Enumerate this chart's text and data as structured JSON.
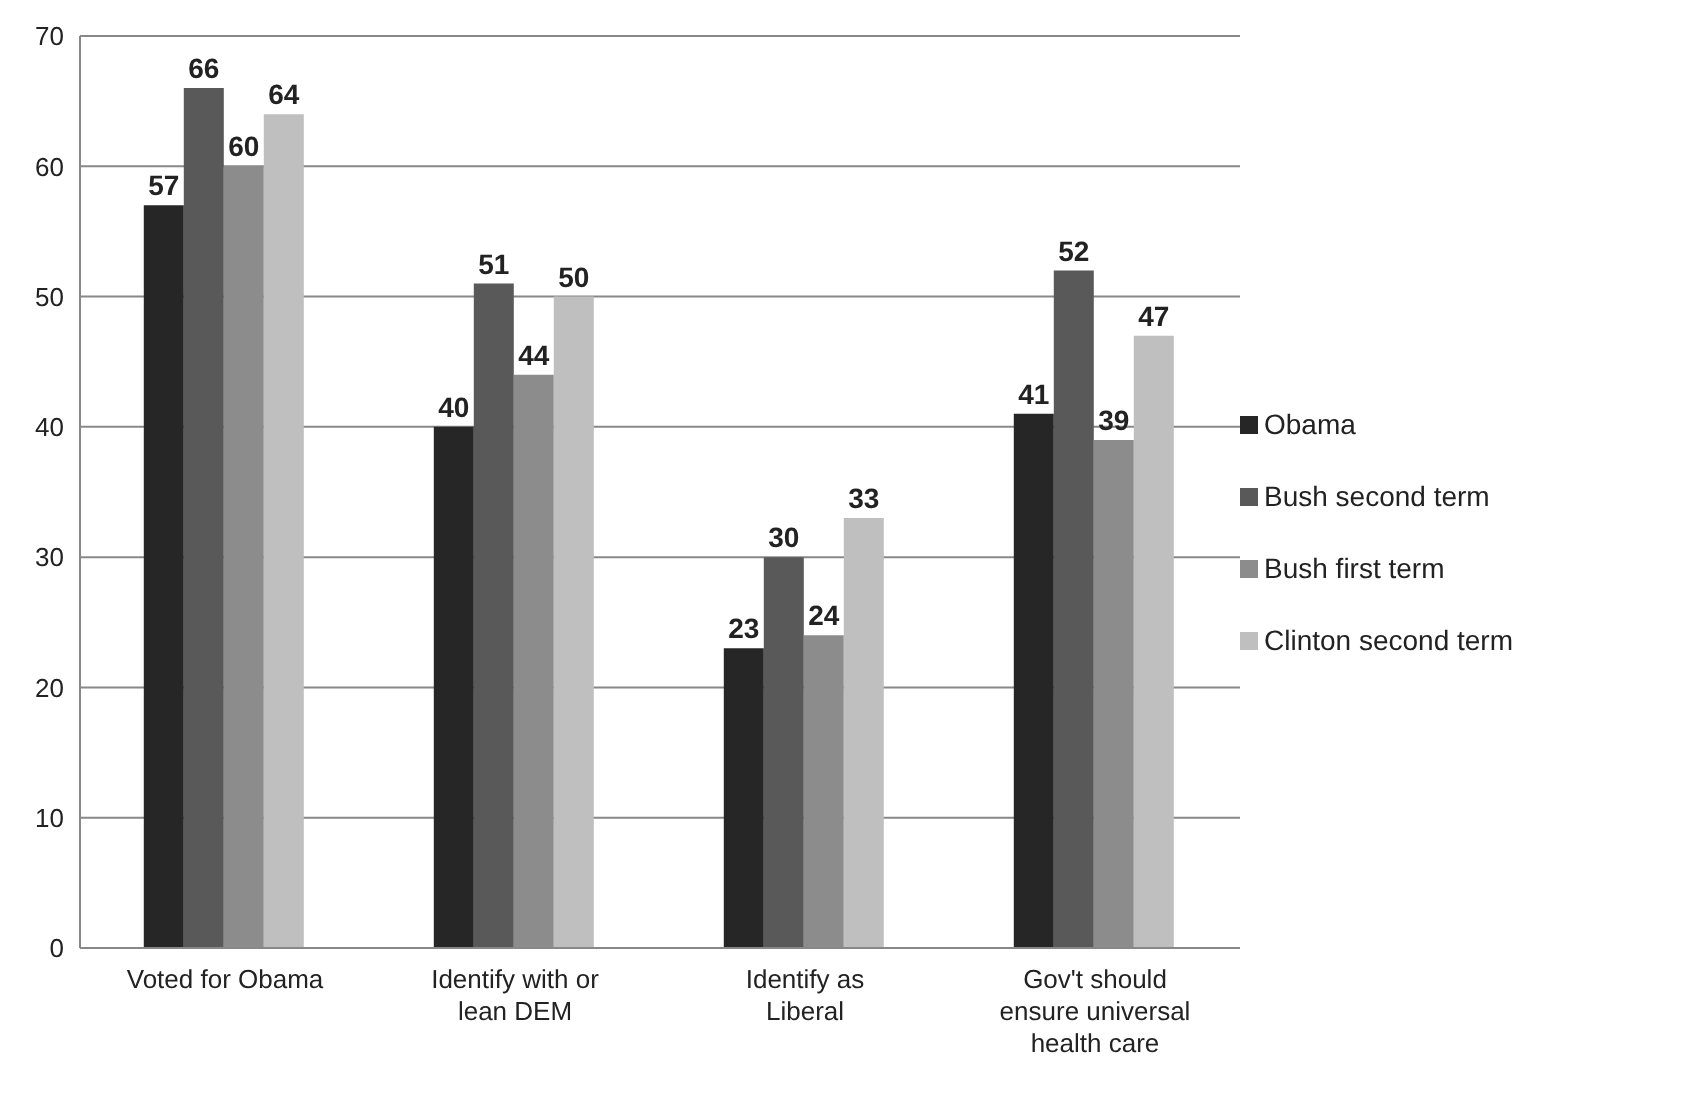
{
  "chart_data": {
    "type": "bar",
    "categories": [
      "Voted for Obama",
      "Identify with or lean DEM",
      "Identify as Liberal",
      "Gov't should ensure universal health care"
    ],
    "series": [
      {
        "name": "Obama",
        "color": "#262626",
        "values": [
          57,
          40,
          23,
          41
        ]
      },
      {
        "name": "Bush second term",
        "color": "#595959",
        "values": [
          66,
          51,
          30,
          52
        ]
      },
      {
        "name": "Bush first term",
        "color": "#8c8c8c",
        "values": [
          60,
          44,
          24,
          39
        ]
      },
      {
        "name": "Clinton second term",
        "color": "#bfbfbf",
        "values": [
          64,
          50,
          33,
          47
        ]
      }
    ],
    "ylim": [
      0,
      70
    ],
    "yticks": [
      0,
      10,
      20,
      30,
      40,
      50,
      60,
      70
    ],
    "grid": "y",
    "legend": "right",
    "data_labels": true
  }
}
